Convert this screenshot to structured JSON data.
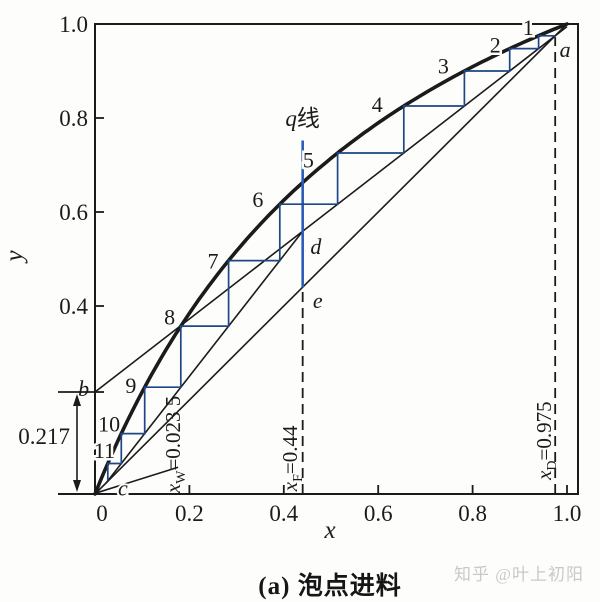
{
  "caption": {
    "text": "(a) 泡点进料"
  },
  "watermark": {
    "text": "知乎 @叶上初阳"
  },
  "colors": {
    "ink": "#1b1b1b",
    "staircase_blue": "#1f4687",
    "qline_blue": "#2a5db5",
    "paper": "#fdfdfb",
    "watermark_gray": "#c9c9c9"
  },
  "chart_data": {
    "type": "line",
    "title": "(a) 泡点进料",
    "xlabel": "x",
    "ylabel": "y",
    "xlim": [
      0,
      1.02
    ],
    "ylim": [
      0,
      1.0
    ],
    "grid": false,
    "x_ticks": {
      "values": [
        0,
        0.2,
        0.4,
        0.6,
        0.8,
        1.0
      ],
      "labels": [
        "0",
        "0.2",
        "0.4",
        "0.6",
        "0.8",
        "1.0"
      ]
    },
    "y_ticks": {
      "values": [
        0.4,
        0.6,
        0.8,
        1.0
      ],
      "labels": [
        "0.4",
        "0.6",
        "0.8",
        "1.0"
      ]
    },
    "key_values": {
      "x_D": 0.975,
      "x_F": 0.44,
      "x_W": 0.0235,
      "rectifying_intercept": 0.217
    },
    "equilibrium_curve": {
      "model": "y = a*x/(1+(a-1)*x)",
      "alpha": 2.5,
      "width": 3.6
    },
    "diagonal": {
      "from": [
        0,
        0
      ],
      "to": [
        1,
        1
      ]
    },
    "rectifying_line": {
      "from": [
        0,
        0.217
      ],
      "to": [
        1.0,
        0.9944
      ],
      "intercept": 0.217,
      "slope": 0.7774
    },
    "stripping_line": {
      "from": [
        0.0235,
        0.0235
      ],
      "to": [
        0.44,
        0.5591
      ]
    },
    "aux_line_c": {
      "from": [
        0.002,
        0.002
      ],
      "to": [
        0.176,
        0.057
      ]
    },
    "q_line": {
      "x": 0.44,
      "y_from": 0.44,
      "y_to": 0.752,
      "label": "q线",
      "label_at": [
        0.44,
        0.8
      ]
    },
    "dashed_lines": [
      {
        "x": 0.44,
        "y_from": 0,
        "y_to": 0.43
      },
      {
        "x": 0.975,
        "y_from": 0,
        "y_to": 0.972
      }
    ],
    "rotated_labels": [
      {
        "base": "x",
        "sub": "W",
        "rest": "=0.023 5",
        "at": [
          0.18,
          0.002
        ]
      },
      {
        "base": "x",
        "sub": "F",
        "rest": "=0.44",
        "at": [
          0.428,
          0.006
        ]
      },
      {
        "base": "x",
        "sub": "D",
        "rest": "=0.975",
        "at": [
          0.966,
          0.03
        ]
      }
    ],
    "dimension": {
      "value": "0.217",
      "from_y": 0,
      "to_y": 0.217,
      "label_at_y": 0.123
    },
    "points": {
      "a": [
        0.975,
        0.975
      ],
      "b": [
        0,
        0.217
      ],
      "c": [
        0.0235,
        0.0235
      ],
      "d": [
        0.44,
        0.559
      ],
      "e": [
        0.44,
        0.44
      ]
    },
    "point_labels": [
      {
        "t": "a",
        "at": [
          0.996,
          0.947
        ]
      },
      {
        "t": "b",
        "at": [
          -0.024,
          0.226
        ]
      },
      {
        "t": "c",
        "at": [
          0.059,
          0.014
        ]
      },
      {
        "t": "d",
        "at": [
          0.468,
          0.528
        ]
      },
      {
        "t": "e",
        "at": [
          0.472,
          0.413
        ]
      }
    ],
    "stages": {
      "count": 11,
      "start": [
        0.975,
        0.975
      ],
      "switch_at_x": 0.44,
      "labels": [
        {
          "n": "1",
          "at": [
            0.918,
            0.994
          ]
        },
        {
          "n": "2",
          "at": [
            0.848,
            0.956
          ]
        },
        {
          "n": "3",
          "at": [
            0.738,
            0.912
          ]
        },
        {
          "n": "4",
          "at": [
            0.598,
            0.83
          ]
        },
        {
          "n": "5",
          "at": [
            0.452,
            0.712
          ]
        },
        {
          "n": "6",
          "at": [
            0.345,
            0.628
          ]
        },
        {
          "n": "7",
          "at": [
            0.25,
            0.497
          ]
        },
        {
          "n": "8",
          "at": [
            0.158,
            0.378
          ]
        },
        {
          "n": "9",
          "at": [
            0.076,
            0.232
          ]
        },
        {
          "n": "10",
          "at": [
            0.03,
            0.15
          ]
        },
        {
          "n": "11",
          "at": [
            0.02,
            0.094
          ]
        }
      ]
    }
  }
}
